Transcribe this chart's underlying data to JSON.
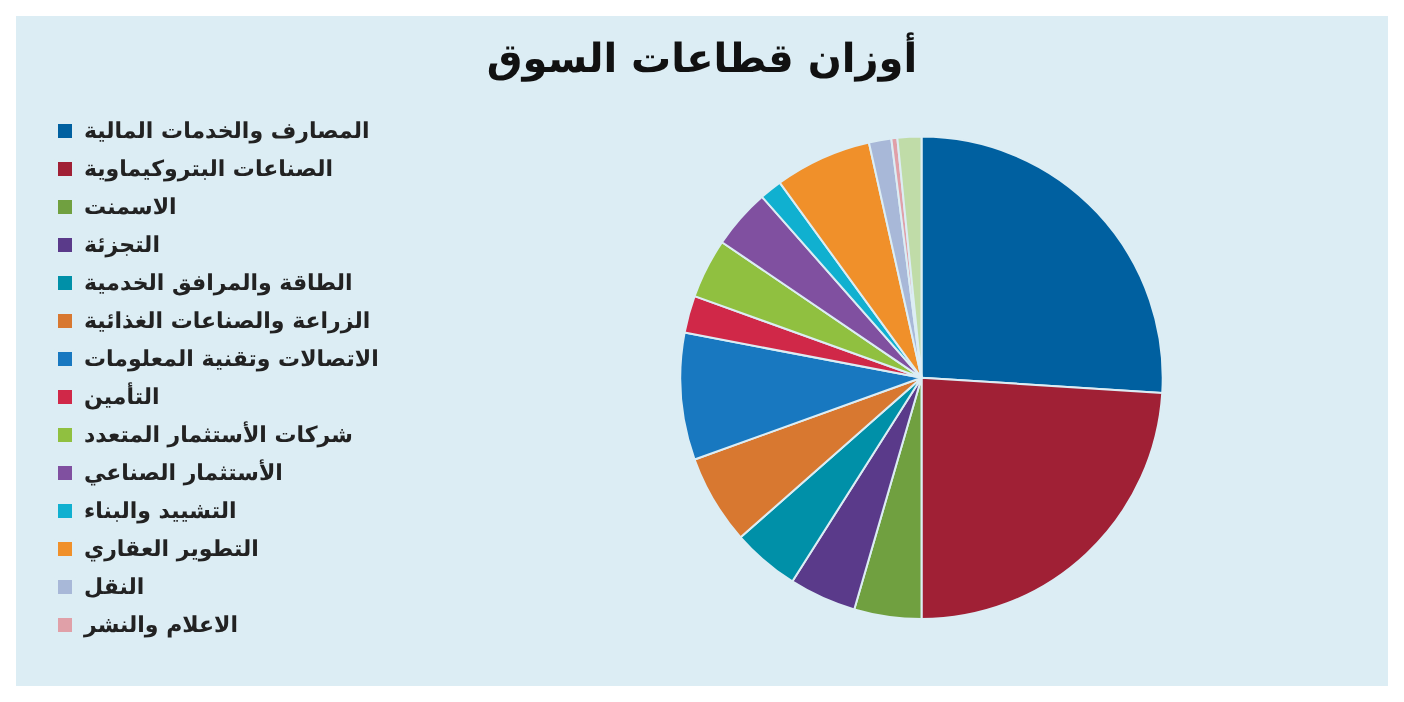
{
  "chart_data": {
    "type": "pie",
    "title": "أوزان قطاعات السوق",
    "categories": [
      "المصارف والخدمات المالية",
      "الصناعات البتروكيماوية",
      "الاسمنت",
      "التجزئة",
      "الطاقة والمرافق الخدمية",
      "الزراعة والصناعات الغذائية",
      "الاتصالات وتقنية المعلومات",
      "التأمين",
      "شركات الأستثمار المتعدد",
      "الأستثمار الصناعي",
      "التشييد والبناء",
      "التطوير العقاري",
      "النقل",
      "الاعلام والنشر",
      null
    ],
    "values": [
      26,
      24,
      4.5,
      4.5,
      4.5,
      6,
      8.5,
      2.5,
      4,
      4,
      1.5,
      6.5,
      1.5,
      0.4,
      1.6
    ],
    "colors": [
      "#0060a0",
      "#a02035",
      "#70a040",
      "#5a3a8a",
      "#0090a8",
      "#d87830",
      "#1878c0",
      "#d02848",
      "#90c040",
      "#8050a0",
      "#10b0d0",
      "#f0902a",
      "#a8b8d8",
      "#e0a0a8",
      "#c0dca8"
    ],
    "legend": "left"
  }
}
